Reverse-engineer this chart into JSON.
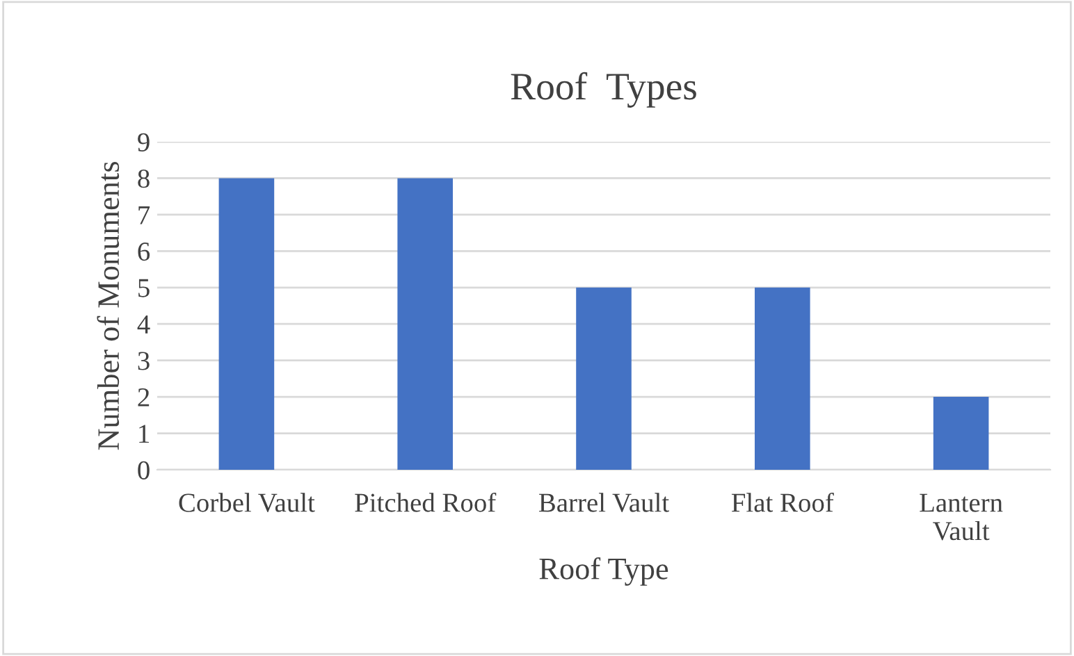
{
  "chart_data": {
    "type": "bar",
    "title": "Roof  Types",
    "xlabel": "Roof Type",
    "ylabel": "Number of Monuments",
    "categories": [
      "Corbel Vault",
      "Pitched Roof",
      "Barrel Vault",
      "Flat Roof",
      "Lantern Vault"
    ],
    "values": [
      8,
      8,
      5,
      5,
      2
    ],
    "color": "#4472c4",
    "ylim": [
      0,
      9
    ],
    "yticks": [
      0,
      1,
      2,
      3,
      4,
      5,
      6,
      7,
      8,
      9
    ],
    "grid": "y",
    "legend": false
  }
}
